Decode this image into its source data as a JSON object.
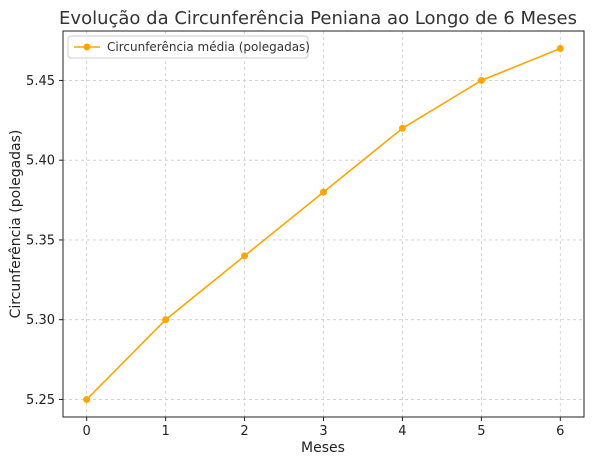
{
  "chart_data": {
    "type": "line",
    "title": "Evolução da Circunferência Peniana ao Longo de 6 Meses",
    "xlabel": "Meses",
    "ylabel": "Circunferência (polegadas)",
    "x": [
      0,
      1,
      2,
      3,
      4,
      5,
      6
    ],
    "series": [
      {
        "name": "Circunferência média (polegadas)",
        "values": [
          5.25,
          5.3,
          5.34,
          5.38,
          5.42,
          5.45,
          5.47
        ],
        "color": "#FFA500",
        "marker": "circle"
      }
    ],
    "xlim": [
      -0.3,
      6.3
    ],
    "ylim": [
      5.239,
      5.481
    ],
    "xticks": [
      "0",
      "1",
      "2",
      "3",
      "4",
      "5",
      "6"
    ],
    "yticks": [
      "5.25",
      "5.30",
      "5.35",
      "5.40",
      "5.45"
    ],
    "grid": true,
    "legend_position": "top-left"
  }
}
